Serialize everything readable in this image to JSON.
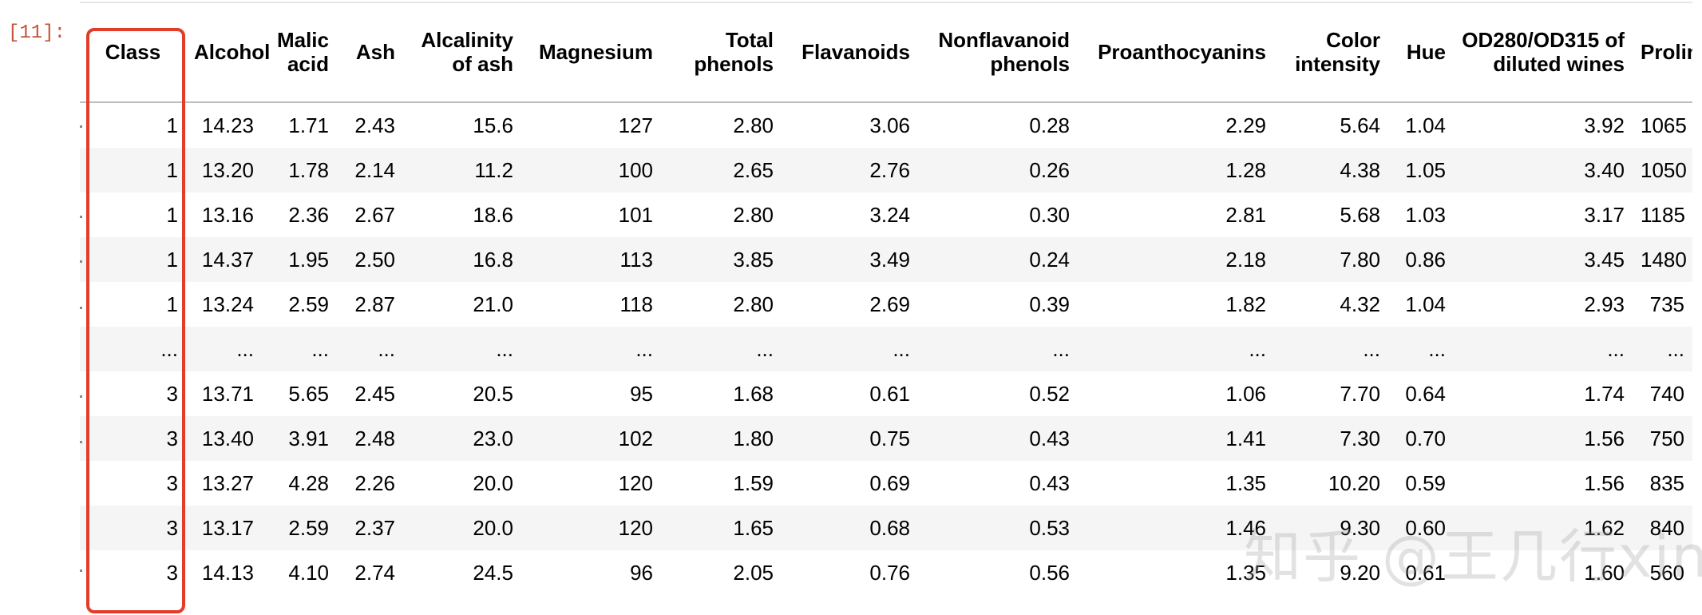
{
  "cell": {
    "prompt": "[11]:"
  },
  "columns": [
    "Class",
    "Alcohol",
    "Malic acid",
    "Ash",
    "Alcalinity of ash",
    "Magnesium",
    "Total phenols",
    "Flavanoids",
    "Nonflavanoid phenols",
    "Proanthocyanins",
    "Color intensity",
    "Hue",
    "OD280/OD315 of diluted wines",
    "Proline"
  ],
  "rows": [
    [
      "1",
      "14.23",
      "1.71",
      "2.43",
      "15.6",
      "127",
      "2.80",
      "3.06",
      "0.28",
      "2.29",
      "5.64",
      "1.04",
      "3.92",
      "1065"
    ],
    [
      "1",
      "13.20",
      "1.78",
      "2.14",
      "11.2",
      "100",
      "2.65",
      "2.76",
      "0.26",
      "1.28",
      "4.38",
      "1.05",
      "3.40",
      "1050"
    ],
    [
      "1",
      "13.16",
      "2.36",
      "2.67",
      "18.6",
      "101",
      "2.80",
      "3.24",
      "0.30",
      "2.81",
      "5.68",
      "1.03",
      "3.17",
      "1185"
    ],
    [
      "1",
      "14.37",
      "1.95",
      "2.50",
      "16.8",
      "113",
      "3.85",
      "3.49",
      "0.24",
      "2.18",
      "7.80",
      "0.86",
      "3.45",
      "1480"
    ],
    [
      "1",
      "13.24",
      "2.59",
      "2.87",
      "21.0",
      "118",
      "2.80",
      "2.69",
      "0.39",
      "1.82",
      "4.32",
      "1.04",
      "2.93",
      "735"
    ],
    [
      "...",
      "...",
      "...",
      "...",
      "...",
      "...",
      "...",
      "...",
      "...",
      "...",
      "...",
      "...",
      "...",
      "..."
    ],
    [
      "3",
      "13.71",
      "5.65",
      "2.45",
      "20.5",
      "95",
      "1.68",
      "0.61",
      "0.52",
      "1.06",
      "7.70",
      "0.64",
      "1.74",
      "740"
    ],
    [
      "3",
      "13.40",
      "3.91",
      "2.48",
      "23.0",
      "102",
      "1.80",
      "0.75",
      "0.43",
      "1.41",
      "7.30",
      "0.70",
      "1.56",
      "750"
    ],
    [
      "3",
      "13.27",
      "4.28",
      "2.26",
      "20.0",
      "120",
      "1.59",
      "0.69",
      "0.43",
      "1.35",
      "10.20",
      "0.59",
      "1.56",
      "835"
    ],
    [
      "3",
      "13.17",
      "2.59",
      "2.37",
      "20.0",
      "120",
      "1.65",
      "0.68",
      "0.53",
      "1.46",
      "9.30",
      "0.60",
      "1.62",
      "840"
    ],
    [
      "3",
      "14.13",
      "4.10",
      "2.74",
      "24.5",
      "96",
      "2.05",
      "0.76",
      "0.56",
      "1.35",
      "9.20",
      "0.61",
      "1.60",
      "560"
    ]
  ],
  "watermark": "知乎 @王几行xing",
  "colors": {
    "highlight": "#e23c2a",
    "prompt": "#c2553a",
    "stripe": "#f5f5f5"
  }
}
